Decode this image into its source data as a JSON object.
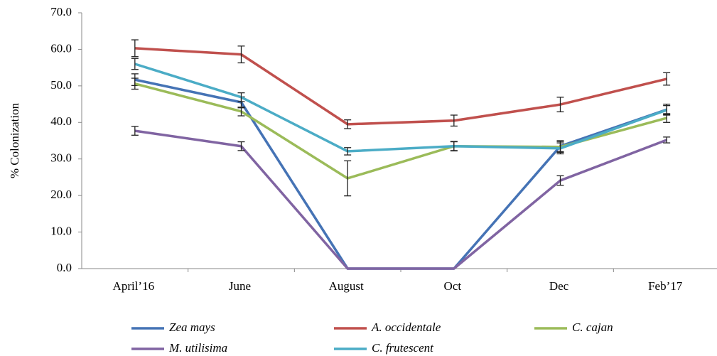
{
  "chart_data": {
    "type": "line",
    "y_label": "% Colonization",
    "categories": [
      "April’16",
      "June",
      "August",
      "Oct",
      "Dec",
      "Feb’17"
    ],
    "ylim": [
      0,
      70
    ],
    "yticks": [
      {
        "value": 0,
        "label": "0.0"
      },
      {
        "value": 10,
        "label": "10.0"
      },
      {
        "value": 20,
        "label": "20.0"
      },
      {
        "value": 30,
        "label": "30.0"
      },
      {
        "value": 40,
        "label": "40.0"
      },
      {
        "value": 50,
        "label": "50.0"
      },
      {
        "value": 60,
        "label": "60.0"
      },
      {
        "value": 70,
        "label": "70.0"
      }
    ],
    "grid": false,
    "legend": "bottom",
    "series": [
      {
        "name": "Zea mays",
        "color": "#4573b5",
        "values": [
          51.7,
          45.5,
          0,
          0,
          33.5,
          43.5
        ],
        "errors": [
          1.6,
          1.5,
          null,
          null,
          1.5,
          1.5
        ]
      },
      {
        "name": "A. occidentale",
        "color": "#c0504d",
        "values": [
          60.3,
          58.6,
          39.5,
          40.5,
          44.9,
          51.9
        ],
        "errors": [
          2.3,
          2.3,
          1.2,
          1.5,
          2.0,
          1.7
        ]
      },
      {
        "name": "C. cajan",
        "color": "#9bbb59",
        "values": [
          50.6,
          43.0,
          24.7,
          33.5,
          33.3,
          41.2
        ],
        "errors": [
          1.5,
          1.2,
          4.8,
          1.2,
          1.5,
          1.2
        ]
      },
      {
        "name": "M. utilisima",
        "color": "#8064a2",
        "values": [
          37.7,
          33.5,
          0,
          0,
          24.1,
          35.2
        ],
        "errors": [
          1.2,
          1.2,
          null,
          null,
          1.3,
          0.8
        ]
      },
      {
        "name": "C. frutescent",
        "color": "#4bacc6",
        "values": [
          56.0,
          46.9,
          32.1,
          33.5,
          32.9,
          43.4
        ],
        "errors": [
          1.5,
          1.2,
          1.0,
          1.3,
          1.5,
          1.2
        ]
      }
    ]
  }
}
